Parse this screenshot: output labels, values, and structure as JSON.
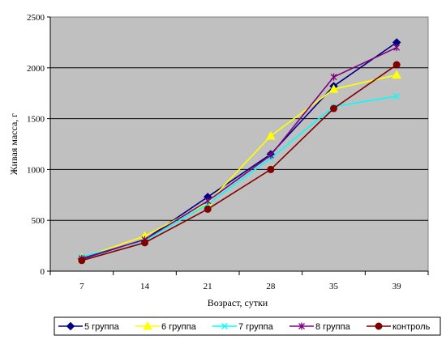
{
  "chart_data": {
    "type": "line",
    "title": "",
    "xlabel": "Возраст, сутки",
    "ylabel": "Живая масса, г",
    "categories": [
      "7",
      "14",
      "21",
      "28",
      "35",
      "39"
    ],
    "ylim": [
      0,
      2500
    ],
    "yticks": [
      "0",
      "500",
      "1000",
      "1500",
      "2000",
      "2500"
    ],
    "grid": "horizontal",
    "plot_background": "#c0c0c0",
    "legend_position": "bottom",
    "series": [
      {
        "name": "5 группа",
        "values": [
          120,
          310,
          730,
          1150,
          1820,
          2250
        ],
        "color": "#000080",
        "marker": "diamond"
      },
      {
        "name": "6 группа",
        "values": [
          130,
          345,
          670,
          1330,
          1790,
          1930
        ],
        "color": "#ffff00",
        "marker": "triangle"
      },
      {
        "name": "7 группа",
        "values": [
          140,
          300,
          660,
          1110,
          1620,
          1720
        ],
        "color": "#00ffff",
        "marker": "x"
      },
      {
        "name": "8 группа",
        "values": [
          125,
          310,
          690,
          1140,
          1910,
          2200
        ],
        "color": "#800080",
        "marker": "star"
      },
      {
        "name": "контроль",
        "values": [
          105,
          280,
          610,
          1000,
          1600,
          2030
        ],
        "color": "#800000",
        "marker": "circle"
      }
    ]
  }
}
